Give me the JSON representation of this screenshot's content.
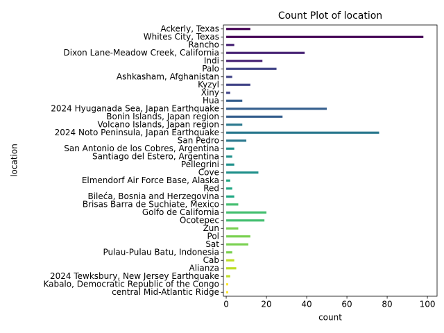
{
  "chart_data": {
    "type": "barh",
    "title": "Count Plot of location",
    "xlabel": "count",
    "ylabel": "location",
    "categories": [
      "Ackerly, Texas",
      "Whites City, Texas",
      "Rancho",
      "Dixon Lane-Meadow Creek, California",
      "Indi",
      "Palo",
      "Ashkasham, Afghanistan",
      "Kyzyl",
      "Xiny",
      "Hua",
      "2024 Hyuganada Sea, Japan Earthquake",
      "Bonin Islands, Japan region",
      "Volcano Islands, Japan region",
      "2024 Noto Peninsula, Japan Earthquake",
      "San Pedro",
      "San Antonio de los Cobres, Argentina",
      "Santiago del Estero, Argentina",
      "Pellegrini",
      "Cove",
      "Elmendorf Air Force Base, Alaska",
      "Red",
      "Bileća, Bosnia and Herzegovina",
      "Brisas Barra de Suchiate, Mexico",
      "Golfo de California",
      "Ocotepec",
      "Zun",
      "Pol",
      "Sat",
      "Pulau-Pulau Batu, Indonesia",
      "Cab",
      "Alianza",
      "2024 Tewksbury, New Jersey Earthquake",
      "Kabalo, Democratic Republic of the Congo",
      "central Mid-Atlantic Ridge"
    ],
    "values": [
      12,
      98,
      4,
      39,
      18,
      25,
      3,
      12,
      2,
      8,
      50,
      28,
      8,
      76,
      10,
      4,
      3,
      4,
      16,
      2,
      3,
      4,
      6,
      20,
      19,
      6,
      12,
      11,
      3,
      4,
      5,
      2,
      1,
      1
    ],
    "colors": [
      "#440154",
      "#440154",
      "#482475",
      "#482475",
      "#482475",
      "#414487",
      "#414487",
      "#414487",
      "#414487",
      "#355f8d",
      "#355f8d",
      "#355f8d",
      "#2a788e",
      "#2a788e",
      "#2a788e",
      "#21918c",
      "#21918c",
      "#21918c",
      "#21918c",
      "#22a884",
      "#22a884",
      "#22a884",
      "#44bf70",
      "#44bf70",
      "#44bf70",
      "#7ad151",
      "#7ad151",
      "#7ad151",
      "#7ad151",
      "#bddf26",
      "#bddf26",
      "#bddf26",
      "#fde725",
      "#fde725"
    ],
    "xlim": [
      -1.4,
      104.8
    ],
    "xticks": [
      0,
      20,
      40,
      60,
      80,
      100
    ]
  }
}
